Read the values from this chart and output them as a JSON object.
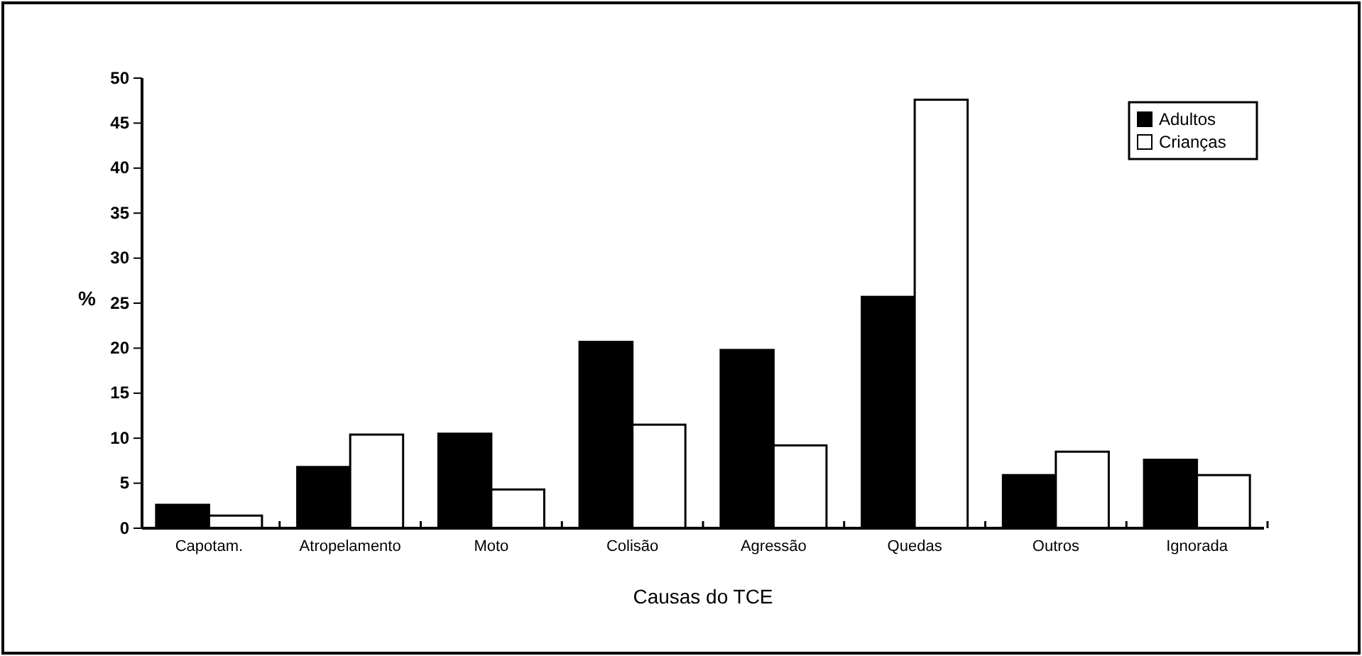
{
  "chart_data": {
    "type": "bar",
    "xlabel": "Causas do TCE",
    "ylabel": "%",
    "categories": [
      "Capotam.",
      "Atropelamento",
      "Moto",
      "Colisão",
      "Agressão",
      "Quedas",
      "Outros",
      "Ignorada"
    ],
    "series": [
      {
        "name": "Adultos",
        "color": "#000000",
        "values": [
          2.6,
          6.8,
          10.5,
          20.7,
          19.8,
          25.7,
          5.9,
          7.6
        ]
      },
      {
        "name": "Crianças",
        "color": "#ffffff",
        "values": [
          1.4,
          10.4,
          4.3,
          11.5,
          9.2,
          47.6,
          8.5,
          5.9
        ]
      }
    ],
    "ylim": [
      0,
      50
    ],
    "yticks": [
      0,
      5,
      10,
      15,
      20,
      25,
      30,
      35,
      40,
      45,
      50
    ],
    "grid": false,
    "legend": "top right"
  }
}
